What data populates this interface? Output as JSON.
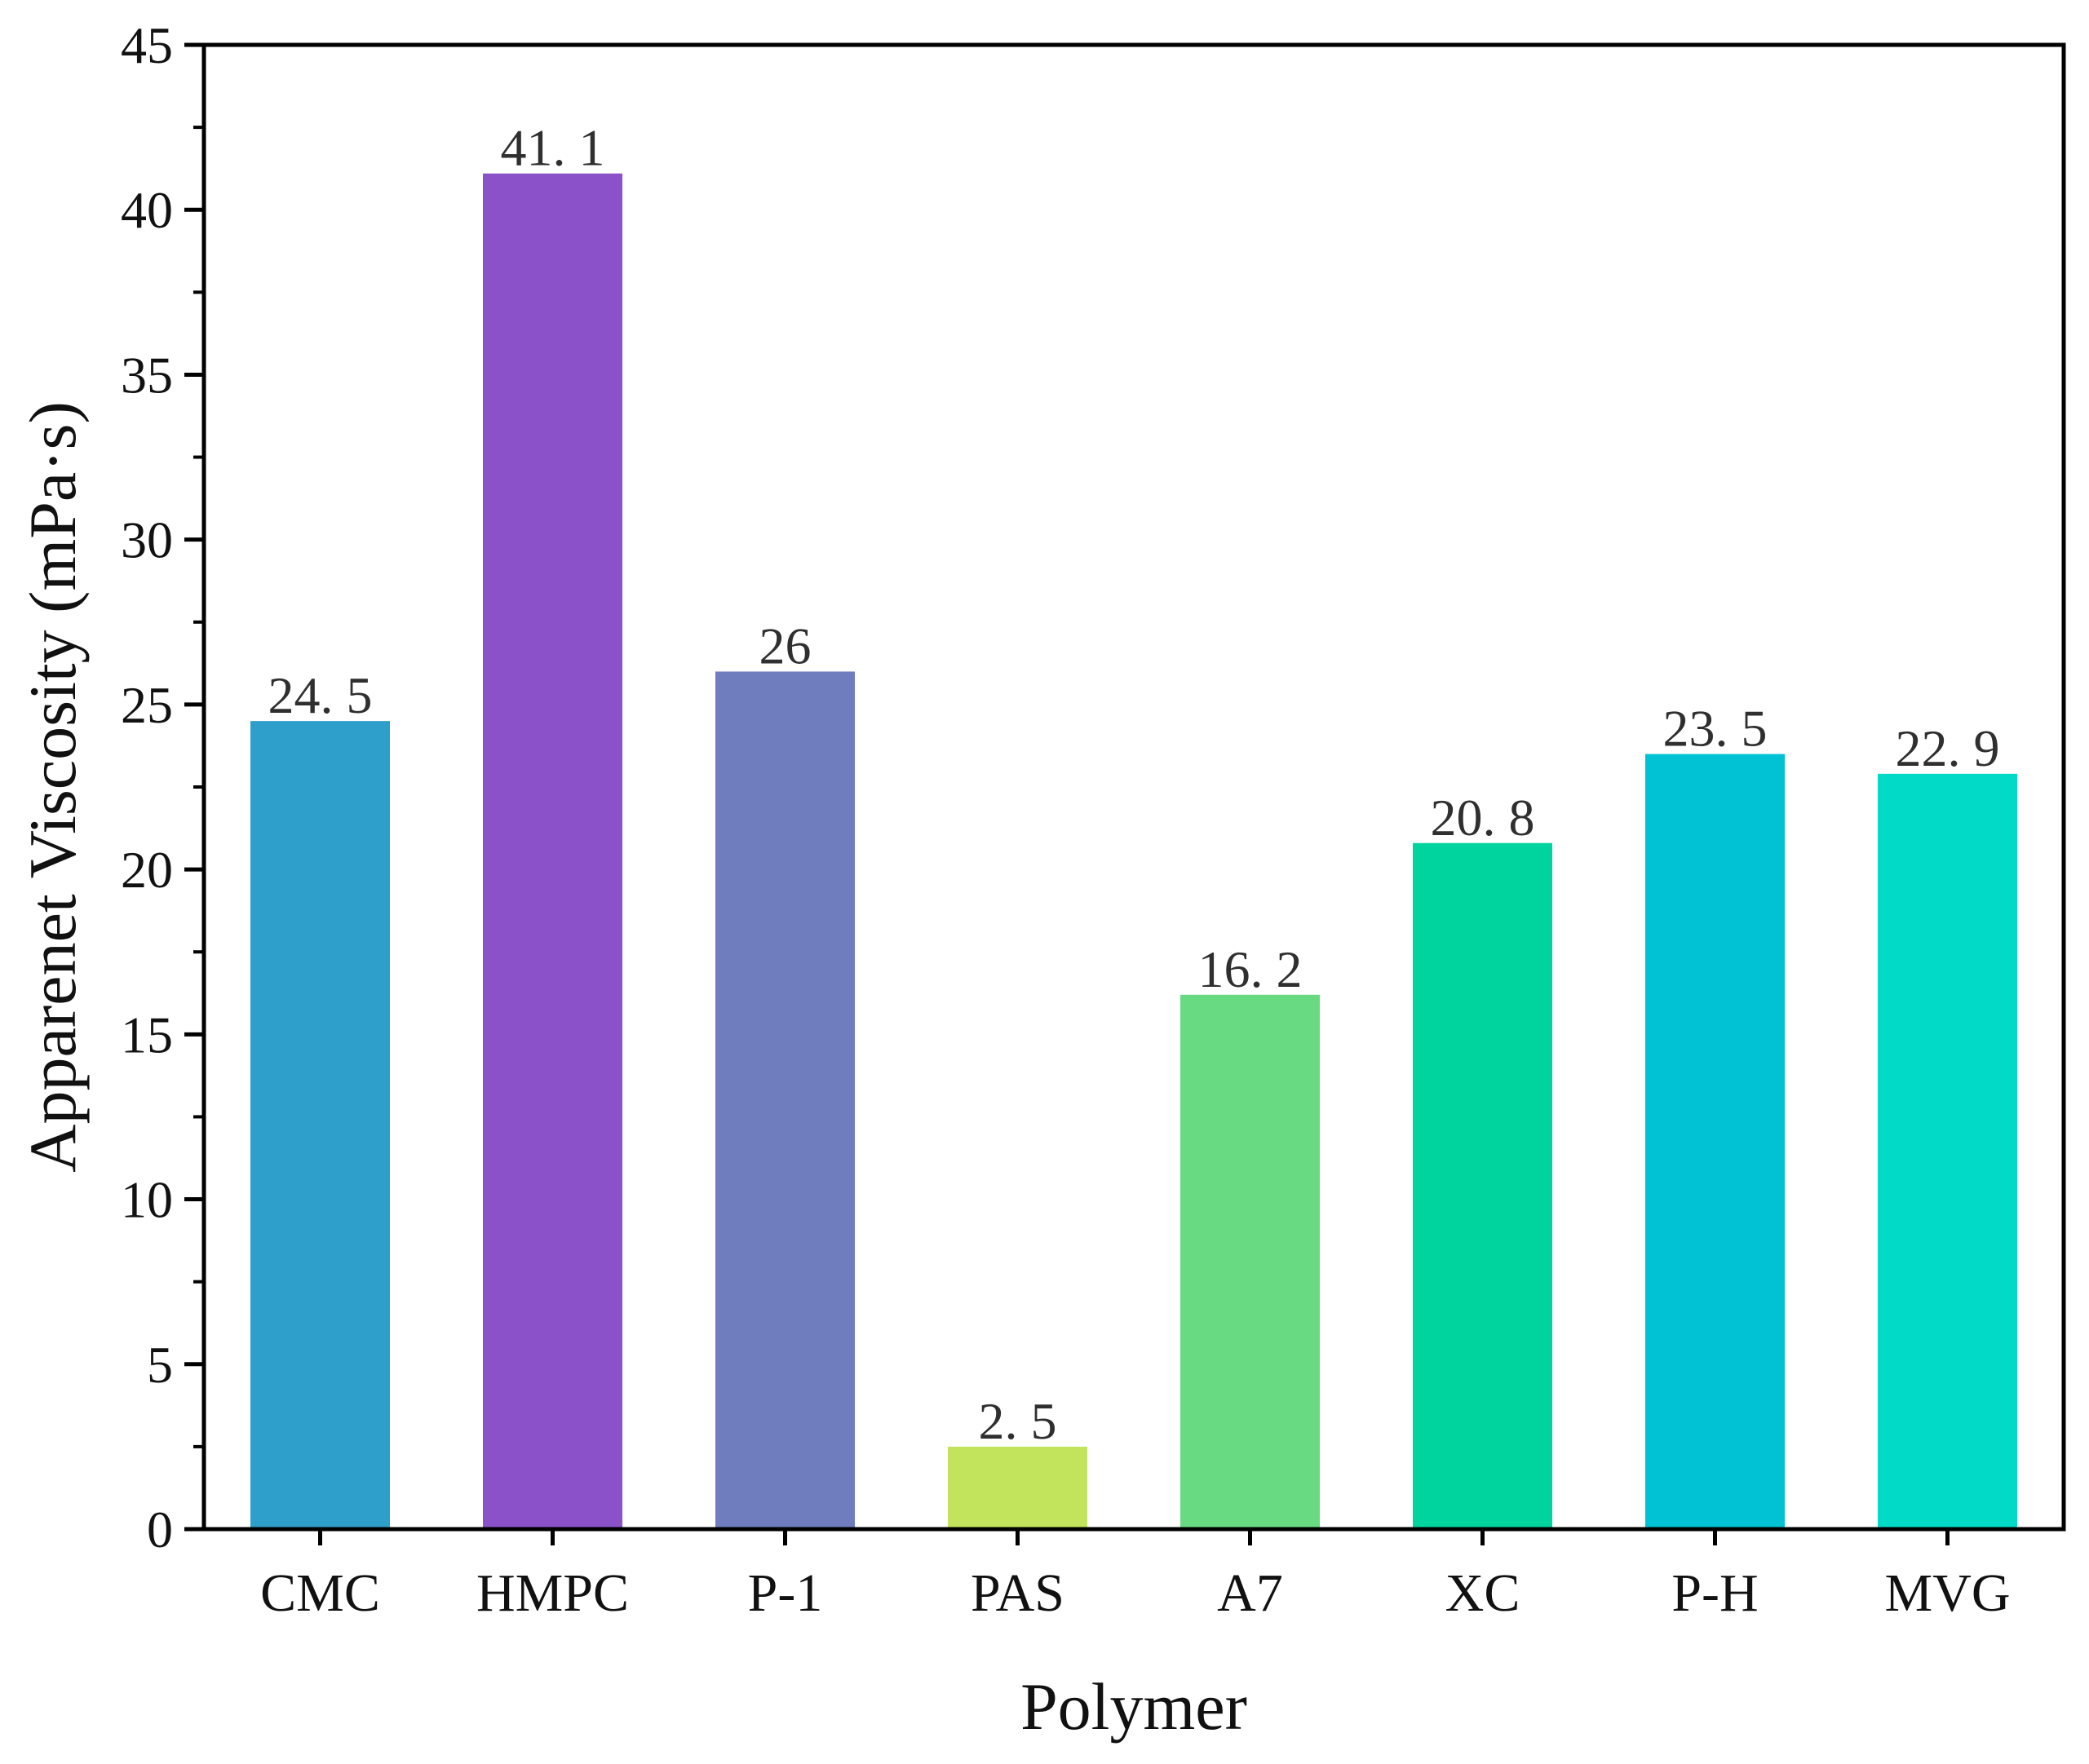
{
  "chart_data": {
    "type": "bar",
    "title": "",
    "xlabel": "Polymer",
    "ylabel": "Apparenet Viscosity (mPa·s)",
    "ylim": [
      0,
      45
    ],
    "yticks": [
      "0",
      "5",
      "10",
      "15",
      "20",
      "25",
      "30",
      "35",
      "40",
      "45"
    ],
    "grid": false,
    "categories": [
      "CMC",
      "HMPC",
      "P-1",
      "PAS",
      "A7",
      "XC",
      "P-H",
      "MVG"
    ],
    "values": [
      24.5,
      41.1,
      26,
      2.5,
      16.2,
      20.8,
      23.5,
      22.9
    ],
    "data_labels": [
      "24. 5",
      "41. 1",
      "26",
      "2. 5",
      "16. 2",
      "20. 8",
      "23. 5",
      "22. 9"
    ],
    "colors": [
      "#2E9FCB",
      "#8A51C9",
      "#6F7DBF",
      "#C2E45C",
      "#68DB82",
      "#00D49E",
      "#00C2D4",
      "#00DAC7"
    ]
  }
}
